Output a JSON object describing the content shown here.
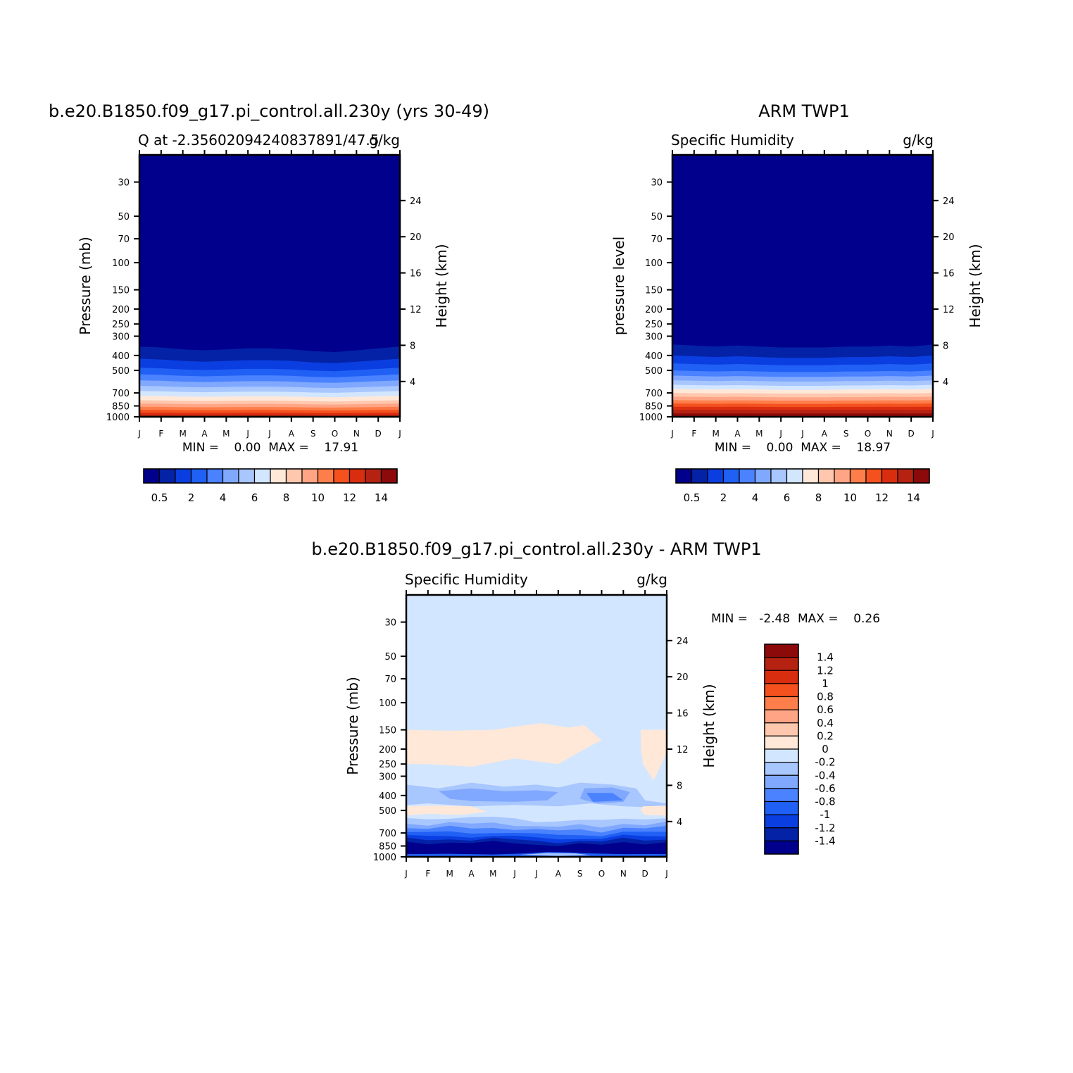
{
  "colors": {
    "q_scale": [
      "#00008c",
      "#0422a6",
      "#0a3ee0",
      "#2060f5",
      "#4a82ff",
      "#80a8ff",
      "#a8c6ff",
      "#d3e6ff",
      "#ffe8d8",
      "#ffc8ae",
      "#ffa585",
      "#fd7e4a",
      "#f4511e",
      "#d92d10",
      "#b52212",
      "#8c0a0a"
    ],
    "diff_scale": [
      "#00008c",
      "#0422a6",
      "#0a3ee0",
      "#2060f5",
      "#4a82ff",
      "#80a8ff",
      "#a8c6ff",
      "#d3e6ff",
      "#ffe8d8",
      "#ffc8ae",
      "#ffa585",
      "#fd7e4a",
      "#f4511e",
      "#d92d10",
      "#b52212",
      "#8c0a0a"
    ]
  },
  "chart_data": [
    {
      "type": "heatmap",
      "title": "b.e20.B1850.f09_g17.pi_control.all.230y (yrs 30-49)",
      "subtitle_left": "Q at -2.35602094240837891/47.5",
      "subtitle_right": "g/kg",
      "xlabel": "",
      "ylabel": "Pressure (mb)",
      "ylabel_right": "Height (km)",
      "x_ticks": [
        "J",
        "F",
        "M",
        "A",
        "M",
        "J",
        "J",
        "A",
        "S",
        "O",
        "N",
        "D",
        "J"
      ],
      "y_ticks": [
        "30",
        "50",
        "70",
        "100",
        "150",
        "200",
        "250",
        "300",
        "400",
        "500",
        "700",
        "850",
        "1000"
      ],
      "y_ticks_right": [
        "24",
        "20",
        "16",
        "12",
        "8",
        "4"
      ],
      "ylim": [
        1000,
        20
      ],
      "y_scale": "log",
      "stats": "MIN =    0.00  MAX =    17.91",
      "colorbar_labels": [
        "0.5",
        "2",
        "4",
        "6",
        "8",
        "10",
        "12",
        "14"
      ],
      "levels_boundaries_mb": [
        350,
        420,
        480,
        530,
        580,
        630,
        680,
        730,
        780,
        820,
        860,
        900,
        940,
        970,
        990,
        1000
      ],
      "seasonal_shift_mb": [
        0,
        5,
        15,
        20,
        15,
        10,
        10,
        15,
        25,
        30,
        20,
        10,
        0
      ]
    },
    {
      "type": "heatmap",
      "title": "ARM TWP1",
      "subtitle_left": "Specific Humidity",
      "subtitle_right": "g/kg",
      "xlabel": "",
      "ylabel": "pressure level",
      "ylabel_right": "Height (km)",
      "x_ticks": [
        "J",
        "F",
        "M",
        "A",
        "M",
        "J",
        "J",
        "A",
        "S",
        "O",
        "N",
        "D",
        "J"
      ],
      "y_ticks": [
        "30",
        "50",
        "70",
        "100",
        "150",
        "200",
        "250",
        "300",
        "400",
        "500",
        "700",
        "850",
        "1000"
      ],
      "y_ticks_right": [
        "24",
        "20",
        "16",
        "12",
        "8",
        "4"
      ],
      "ylim": [
        1000,
        20
      ],
      "y_scale": "log",
      "stats": "MIN =    0.00  MAX =    18.97",
      "colorbar_labels": [
        "0.5",
        "2",
        "4",
        "6",
        "8",
        "10",
        "12",
        "14"
      ],
      "levels_boundaries_mb": [
        340,
        400,
        450,
        500,
        540,
        580,
        620,
        660,
        700,
        740,
        780,
        820,
        860,
        900,
        950,
        1000
      ],
      "seasonal_shift_mb": [
        0,
        5,
        10,
        5,
        10,
        15,
        15,
        15,
        10,
        10,
        5,
        10,
        0
      ]
    },
    {
      "type": "heatmap",
      "title": "b.e20.B1850.f09_g17.pi_control.all.230y - ARM TWP1",
      "subtitle_left": "Specific Humidity",
      "subtitle_right": "g/kg",
      "xlabel": "",
      "ylabel": "Pressure (mb)",
      "ylabel_right": "Height (km)",
      "x_ticks": [
        "J",
        "F",
        "M",
        "A",
        "M",
        "J",
        "J",
        "A",
        "S",
        "O",
        "N",
        "D",
        "J"
      ],
      "y_ticks": [
        "30",
        "50",
        "70",
        "100",
        "150",
        "200",
        "250",
        "300",
        "400",
        "500",
        "700",
        "850",
        "1000"
      ],
      "y_ticks_right": [
        "24",
        "20",
        "16",
        "12",
        "8",
        "4"
      ],
      "ylim": [
        1000,
        20
      ],
      "y_scale": "log",
      "stats": "MIN =   -2.48  MAX =    0.26",
      "colorbar_labels": [
        "1.4",
        "1.2",
        "1",
        "0.8",
        "0.6",
        "0.4",
        "0.2",
        "0",
        "-0.2",
        "-0.4",
        "-0.6",
        "-0.8",
        "-1",
        "-1.2",
        "-1.4"
      ]
    }
  ]
}
